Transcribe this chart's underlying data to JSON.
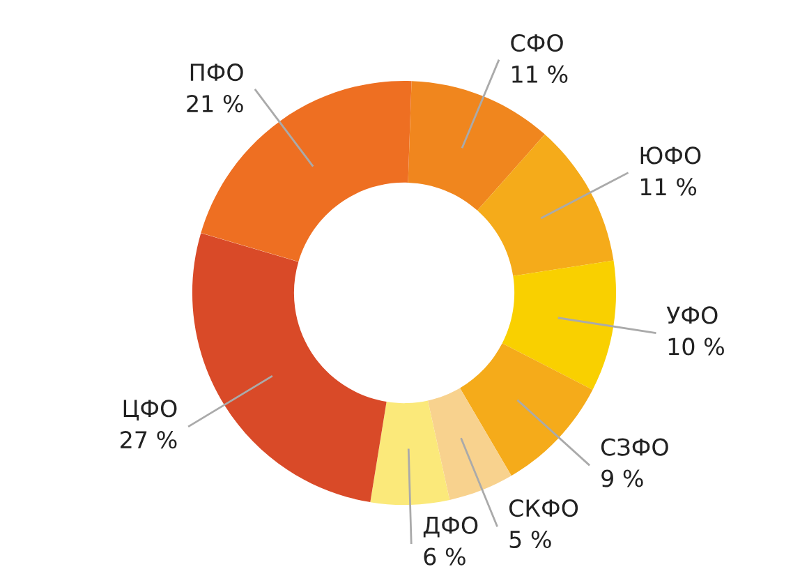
{
  "chart_data": {
    "type": "donut",
    "categories": [
      "СФО",
      "ЮФО",
      "УФО",
      "СЗФО",
      "СКФО",
      "ДФО",
      "ЦФО",
      "ПФО"
    ],
    "values": [
      11,
      11,
      10,
      9,
      5,
      6,
      27,
      21
    ],
    "value_labels": [
      "11 %",
      "11 %",
      "10 %",
      "9 %",
      "5 %",
      "6 %",
      "27 %",
      "21 %"
    ],
    "colors": [
      "#f0861e",
      "#f5ab1a",
      "#f9d000",
      "#f5ab1a",
      "#f8d28e",
      "#fbe97a",
      "#d94a28",
      "#ee6f22"
    ]
  }
}
